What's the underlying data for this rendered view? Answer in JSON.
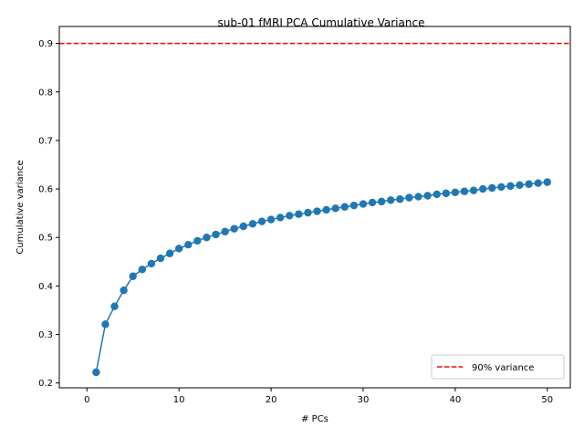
{
  "chart_data": {
    "type": "line",
    "title": "sub-01 fMRI PCA Cumulative Variance",
    "xlabel": "# PCs",
    "ylabel": "Cumulative variance",
    "xlim": [
      -3,
      52.5
    ],
    "ylim": [
      0.19,
      0.935
    ],
    "xticks": [
      0,
      10,
      20,
      30,
      40,
      50
    ],
    "yticks": [
      0.2,
      0.3,
      0.4,
      0.5,
      0.6,
      0.7,
      0.8,
      0.9
    ],
    "grid": false,
    "legend_position": "lower-right",
    "x": [
      1,
      2,
      3,
      4,
      5,
      6,
      7,
      8,
      9,
      10,
      11,
      12,
      13,
      14,
      15,
      16,
      17,
      18,
      19,
      20,
      21,
      22,
      23,
      24,
      25,
      26,
      27,
      28,
      29,
      30,
      31,
      32,
      33,
      34,
      35,
      36,
      37,
      38,
      39,
      40,
      41,
      42,
      43,
      44,
      45,
      46,
      47,
      48,
      49,
      50
    ],
    "series": [
      {
        "color": "#1f77b4",
        "values": [
          0.222,
          0.321,
          0.358,
          0.391,
          0.42,
          0.434,
          0.446,
          0.457,
          0.467,
          0.477,
          0.485,
          0.493,
          0.5,
          0.506,
          0.512,
          0.518,
          0.523,
          0.528,
          0.533,
          0.537,
          0.541,
          0.545,
          0.548,
          0.551,
          0.554,
          0.557,
          0.56,
          0.563,
          0.566,
          0.569,
          0.572,
          0.574,
          0.577,
          0.579,
          0.582,
          0.584,
          0.586,
          0.589,
          0.591,
          0.593,
          0.595,
          0.597,
          0.6,
          0.602,
          0.604,
          0.606,
          0.608,
          0.61,
          0.612,
          0.614
        ]
      }
    ],
    "reference_lines": [
      {
        "name": "90% variance",
        "y": 0.9,
        "color": "#ff0000",
        "style": "dashed"
      }
    ]
  }
}
